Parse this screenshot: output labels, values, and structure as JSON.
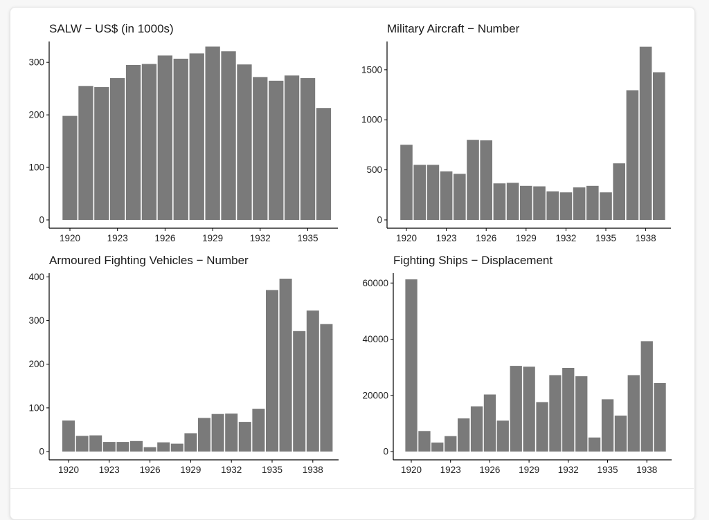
{
  "style": {
    "bar_color": "#7a7a7a",
    "axis_color": "#000000",
    "background": "#ffffff"
  },
  "chart_data": [
    {
      "type": "bar",
      "title": "SALW − US$ (in 1000s)",
      "xlabel": "",
      "ylabel": "",
      "x": [
        1920,
        1921,
        1922,
        1923,
        1924,
        1925,
        1926,
        1927,
        1928,
        1929,
        1930,
        1931,
        1932,
        1933,
        1934,
        1935,
        1936
      ],
      "values": [
        198,
        255,
        253,
        270,
        295,
        297,
        313,
        307,
        317,
        330,
        321,
        296,
        272,
        265,
        275,
        270,
        213
      ],
      "ylim": [
        0,
        345
      ],
      "yticks": [
        0,
        100,
        200,
        300
      ],
      "xticks": [
        1920,
        1923,
        1926,
        1929,
        1932,
        1935
      ],
      "grid": false
    },
    {
      "type": "bar",
      "title": "Military Aircraft − Number",
      "xlabel": "",
      "ylabel": "",
      "x": [
        1920,
        1921,
        1922,
        1923,
        1924,
        1925,
        1926,
        1927,
        1928,
        1929,
        1930,
        1931,
        1932,
        1933,
        1934,
        1935,
        1936,
        1937,
        1938,
        1939
      ],
      "values": [
        750,
        550,
        550,
        485,
        460,
        800,
        795,
        365,
        370,
        340,
        335,
        285,
        275,
        325,
        340,
        275,
        565,
        1295,
        1730,
        1475
      ],
      "ylim": [
        0,
        1810
      ],
      "yticks": [
        0,
        500,
        1000,
        1500
      ],
      "xticks": [
        1920,
        1923,
        1926,
        1929,
        1932,
        1935,
        1938
      ],
      "grid": false
    },
    {
      "type": "bar",
      "title": "Armoured Fighting Vehicles − Number",
      "xlabel": "",
      "ylabel": "",
      "x": [
        1920,
        1921,
        1922,
        1923,
        1924,
        1925,
        1926,
        1927,
        1928,
        1929,
        1930,
        1931,
        1932,
        1933,
        1934,
        1935,
        1936,
        1937,
        1938,
        1939
      ],
      "values": [
        71,
        36,
        37,
        22,
        22,
        24,
        10,
        21,
        18,
        42,
        77,
        86,
        87,
        68,
        98,
        370,
        396,
        276,
        323,
        292
      ],
      "ylim": [
        0,
        415
      ],
      "yticks": [
        0,
        100,
        200,
        300,
        400
      ],
      "xticks": [
        1920,
        1923,
        1926,
        1929,
        1932,
        1935,
        1938
      ],
      "grid": false
    },
    {
      "type": "bar",
      "title": "Fighting Ships − Displacement",
      "xlabel": "",
      "ylabel": "",
      "x": [
        1920,
        1921,
        1922,
        1923,
        1924,
        1925,
        1926,
        1927,
        1928,
        1929,
        1930,
        1931,
        1932,
        1933,
        1934,
        1935,
        1936,
        1937,
        1938,
        1939
      ],
      "values": [
        61300,
        7300,
        3200,
        5500,
        11800,
        16100,
        20300,
        11000,
        30500,
        30200,
        17600,
        27200,
        29800,
        26800,
        5000,
        18600,
        12800,
        27200,
        39300,
        24400
      ],
      "ylim": [
        0,
        64500
      ],
      "yticks": [
        0,
        20000,
        40000,
        60000
      ],
      "xticks": [
        1920,
        1923,
        1926,
        1929,
        1932,
        1935,
        1938
      ],
      "grid": false
    }
  ]
}
